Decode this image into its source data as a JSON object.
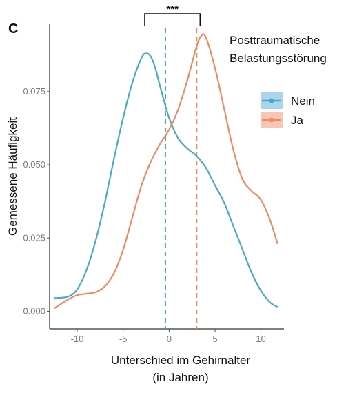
{
  "chart_data": {
    "type": "line",
    "panel_label": "C",
    "xlabel": "Unterschied im Gehirnalter",
    "xlabel_line2": "(in Jahren)",
    "ylabel": "Gemessene Häufigkeit",
    "xlim": [
      -13,
      12.5
    ],
    "ylim": [
      -0.006,
      0.098
    ],
    "x_ticks": [
      -10,
      -5,
      0,
      5,
      10
    ],
    "x_tick_labels": [
      "-10",
      "-5",
      "0",
      "5",
      "10"
    ],
    "y_ticks": [
      0.0,
      0.025,
      0.05,
      0.075
    ],
    "y_tick_labels": [
      "0.000",
      "0.025",
      "0.050",
      "0.075"
    ],
    "grid": false,
    "legend_title": "Posttraumatische Belastungsstörung",
    "legend_title_line1": "Posttraumatische",
    "legend_title_line2": "Belastungsstörung",
    "legend_position": "top-right",
    "significance_label": "***",
    "series": [
      {
        "name": "Nein",
        "color": "#4aa8c8",
        "fill": "#a9d6ec",
        "mean_line_x": -0.4,
        "x": [
          -12.5,
          -11,
          -10,
          -9,
          -8,
          -7,
          -6,
          -5,
          -4,
          -3,
          -2.5,
          -2,
          -1.5,
          -1,
          0,
          1,
          2,
          3,
          4,
          5,
          6,
          7,
          8,
          9,
          10,
          11,
          11.8
        ],
        "y": [
          0.0045,
          0.005,
          0.0075,
          0.014,
          0.024,
          0.037,
          0.052,
          0.066,
          0.078,
          0.0865,
          0.088,
          0.087,
          0.083,
          0.077,
          0.066,
          0.059,
          0.0555,
          0.053,
          0.049,
          0.043,
          0.037,
          0.029,
          0.021,
          0.013,
          0.007,
          0.003,
          0.0015
        ]
      },
      {
        "name": "Ja",
        "color": "#ee8a66",
        "fill": "#f7c6b4",
        "mean_line_x": 3.0,
        "x": [
          -12.5,
          -11,
          -10,
          -9,
          -8,
          -7,
          -6,
          -5,
          -4,
          -3,
          -2,
          -1,
          0,
          1,
          2,
          3,
          3.5,
          4,
          5,
          6,
          7,
          8,
          9,
          10,
          11,
          11.8
        ],
        "y": [
          0.001,
          0.004,
          0.0055,
          0.006,
          0.0065,
          0.0085,
          0.013,
          0.021,
          0.032,
          0.043,
          0.051,
          0.057,
          0.062,
          0.069,
          0.079,
          0.0905,
          0.094,
          0.0935,
          0.083,
          0.069,
          0.055,
          0.045,
          0.041,
          0.038,
          0.031,
          0.023
        ]
      }
    ]
  }
}
